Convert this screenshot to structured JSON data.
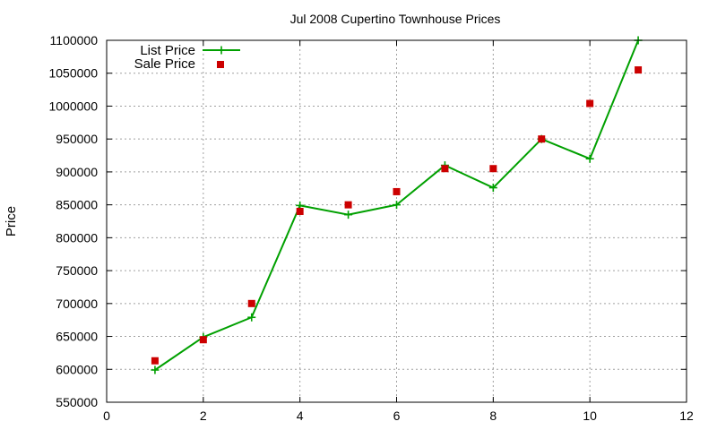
{
  "chart_data": {
    "type": "line",
    "title": "Jul 2008 Cupertino Townhouse Prices",
    "xlabel": "",
    "ylabel": "Price",
    "xlim": [
      0,
      12
    ],
    "ylim": [
      550000,
      1100000
    ],
    "xticks": [
      0,
      2,
      4,
      6,
      8,
      10,
      12
    ],
    "yticks": [
      550000,
      600000,
      650000,
      700000,
      750000,
      800000,
      850000,
      900000,
      950000,
      1000000,
      1050000,
      1100000
    ],
    "grid": true,
    "legend_position": "top-left",
    "series": [
      {
        "name": "List Price",
        "style": "line-plus",
        "color": "#00a000",
        "x": [
          1,
          2,
          3,
          4,
          5,
          6,
          7,
          8,
          9,
          10,
          11
        ],
        "y": [
          599000,
          649000,
          679000,
          849000,
          835000,
          850000,
          910000,
          876000,
          950000,
          920000,
          1100000
        ]
      },
      {
        "name": "Sale Price",
        "style": "square-markers",
        "color": "#cc0000",
        "x": [
          1,
          2,
          3,
          4,
          5,
          6,
          7,
          8,
          9,
          10,
          11
        ],
        "y": [
          613000,
          645000,
          700000,
          840000,
          850000,
          870000,
          905000,
          905000,
          950000,
          1004000,
          1055000
        ]
      }
    ]
  }
}
